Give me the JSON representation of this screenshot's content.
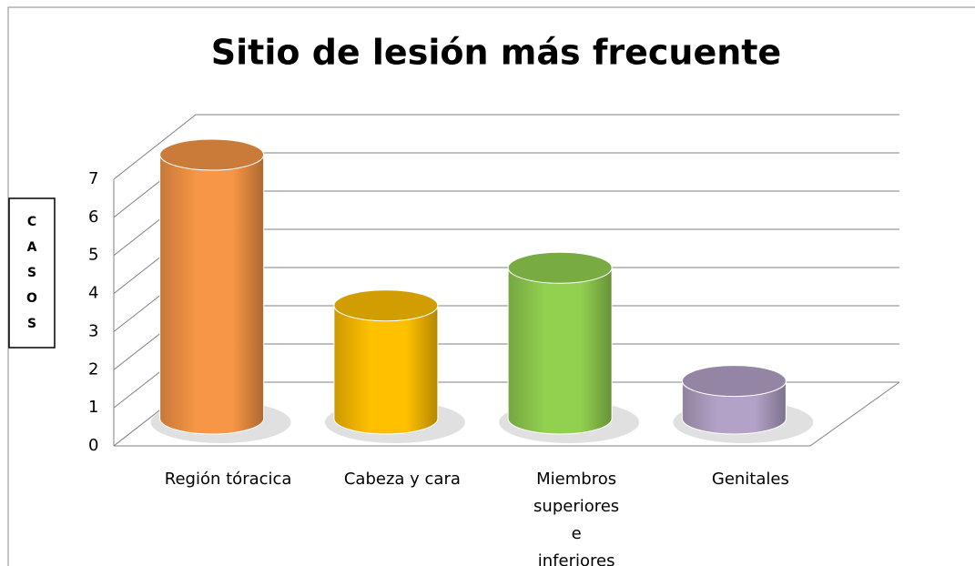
{
  "chart_data": {
    "type": "bar",
    "title": "Sitio de lesión más frecuente",
    "y_label": "CASOS",
    "categories": [
      "Región tóracica",
      "Cabeza y cara",
      "Miembros superiores e inferiores",
      "Genitales"
    ],
    "values": [
      7,
      3,
      4,
      1
    ],
    "colors": [
      "#f79646",
      "#ffc000",
      "#92d050",
      "#b3a2c7"
    ],
    "ylim": [
      0,
      7
    ],
    "yticks": [
      0,
      1,
      2,
      3,
      4,
      5,
      6,
      7
    ],
    "grid": true
  }
}
